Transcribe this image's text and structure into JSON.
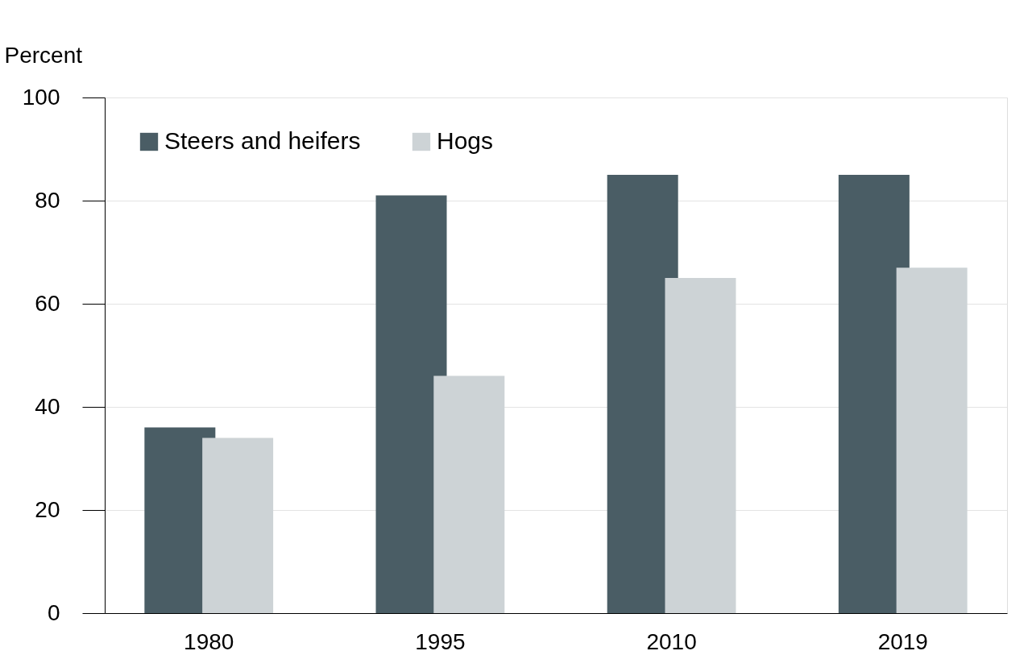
{
  "chart_data": {
    "type": "bar",
    "ylabel": "Percent",
    "categories": [
      "1980",
      "1995",
      "2010",
      "2019"
    ],
    "series": [
      {
        "name": "Steers and heifers",
        "color": "#4a5d65",
        "values": [
          36,
          81,
          85,
          85
        ]
      },
      {
        "name": "Hogs",
        "color": "#cdd3d6",
        "values": [
          34,
          46,
          65,
          67
        ]
      }
    ],
    "ylim": [
      0,
      100
    ],
    "yticks": [
      0,
      20,
      40,
      60,
      80,
      100
    ],
    "grid": "y",
    "legend": "top left"
  }
}
